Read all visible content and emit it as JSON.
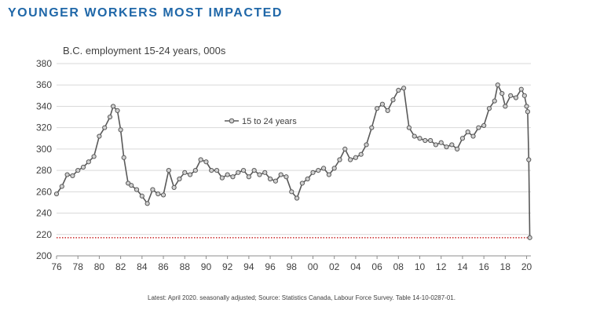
{
  "header": {
    "title": "YOUNGER WORKERS MOST IMPACTED"
  },
  "footnote": "Latest:  April 2020.  seasonally adjusted;   Source: Statistics Canada, Labour Force Survey.  Table 14-10-0287-01.",
  "colors": {
    "title": "#1f67a8",
    "series": "#595959",
    "marker_fill": "#d0d0d0",
    "reference_line": "#c00000",
    "grid": "#d9d9d9"
  },
  "chart_data": {
    "type": "line",
    "title": "B.C. employment 15-24 years, 000s",
    "xlabel": "",
    "ylabel": "",
    "xlim": [
      1976,
      2020.4
    ],
    "ylim": [
      200,
      380
    ],
    "yticks": [
      200,
      220,
      240,
      260,
      280,
      300,
      320,
      340,
      360,
      380
    ],
    "ytick_labels": [
      "200",
      "220",
      "240",
      "260",
      "280",
      "300",
      "320",
      "340",
      "360",
      "380"
    ],
    "xticks": [
      1976,
      1978,
      1980,
      1982,
      1984,
      1986,
      1988,
      1990,
      1992,
      1994,
      1996,
      1998,
      2000,
      2002,
      2004,
      2006,
      2008,
      2010,
      2012,
      2014,
      2016,
      2018,
      2020
    ],
    "xtick_labels": [
      "76",
      "78",
      "80",
      "82",
      "84",
      "86",
      "88",
      "90",
      "92",
      "94",
      "96",
      "98",
      "00",
      "02",
      "04",
      "06",
      "08",
      "10",
      "12",
      "14",
      "16",
      "18",
      "20"
    ],
    "grid": "horizontal",
    "legend": {
      "position": "upper-center",
      "entries": [
        "15 to 24 years"
      ]
    },
    "reference_line": {
      "y": 217,
      "style": "dotted"
    },
    "series": [
      {
        "name": "15 to 24 years",
        "x": [
          1976.0,
          1976.5,
          1977.0,
          1977.5,
          1978.0,
          1978.5,
          1979.0,
          1979.5,
          1980.0,
          1980.5,
          1981.0,
          1981.3,
          1981.7,
          1982.0,
          1982.3,
          1982.7,
          1983.0,
          1983.5,
          1984.0,
          1984.5,
          1985.0,
          1985.5,
          1986.0,
          1986.5,
          1987.0,
          1987.5,
          1988.0,
          1988.5,
          1989.0,
          1989.5,
          1990.0,
          1990.5,
          1991.0,
          1991.5,
          1992.0,
          1992.5,
          1993.0,
          1993.5,
          1994.0,
          1994.5,
          1995.0,
          1995.5,
          1996.0,
          1996.5,
          1997.0,
          1997.5,
          1998.0,
          1998.5,
          1999.0,
          1999.5,
          2000.0,
          2000.5,
          2001.0,
          2001.5,
          2002.0,
          2002.5,
          2003.0,
          2003.5,
          2004.0,
          2004.5,
          2005.0,
          2005.5,
          2006.0,
          2006.5,
          2007.0,
          2007.5,
          2008.0,
          2008.5,
          2009.0,
          2009.5,
          2010.0,
          2010.5,
          2011.0,
          2011.5,
          2012.0,
          2012.5,
          2013.0,
          2013.5,
          2014.0,
          2014.5,
          2015.0,
          2015.5,
          2016.0,
          2016.5,
          2017.0,
          2017.3,
          2017.7,
          2018.0,
          2018.5,
          2019.0,
          2019.5,
          2019.8,
          2020.0,
          2020.1,
          2020.2,
          2020.3
        ],
        "values": [
          258,
          265,
          276,
          275,
          280,
          283,
          288,
          293,
          312,
          320,
          330,
          340,
          336,
          318,
          292,
          268,
          266,
          262,
          256,
          249,
          262,
          258,
          257,
          280,
          264,
          272,
          278,
          276,
          280,
          290,
          288,
          280,
          280,
          273,
          276,
          274,
          278,
          280,
          274,
          280,
          276,
          278,
          272,
          270,
          276,
          274,
          260,
          254,
          268,
          272,
          278,
          280,
          282,
          276,
          282,
          290,
          300,
          290,
          292,
          295,
          304,
          320,
          338,
          342,
          336,
          346,
          355,
          357,
          320,
          312,
          310,
          308,
          308,
          304,
          306,
          302,
          304,
          300,
          310,
          316,
          312,
          320,
          322,
          338,
          345,
          360,
          352,
          340,
          350,
          348,
          356,
          350,
          340,
          335,
          290,
          217
        ]
      }
    ]
  }
}
